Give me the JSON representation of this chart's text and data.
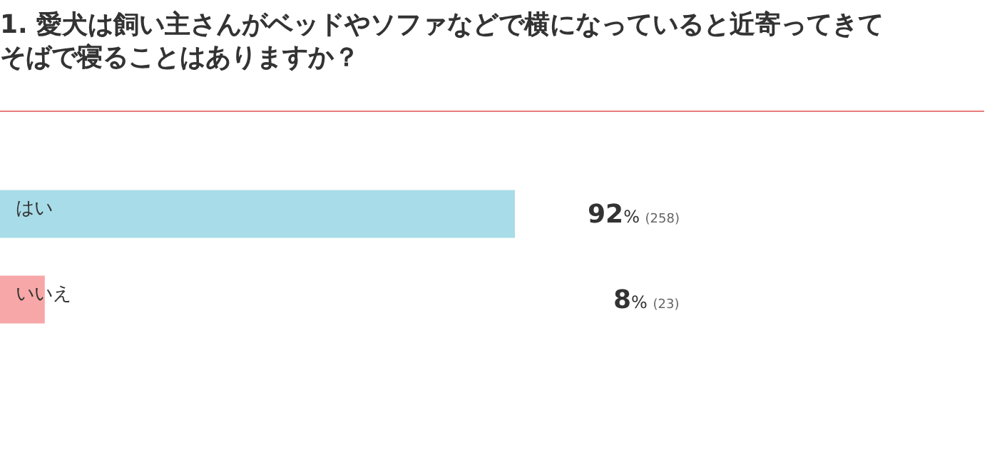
{
  "chart_data": {
    "type": "bar",
    "orientation": "horizontal",
    "title": "1. 愛犬は飼い主さんがベッドやソファなどで横になっていると近寄ってきてそばで寝ることはありますか？",
    "categories": [
      "はい",
      "いいえ"
    ],
    "values": [
      92,
      8
    ],
    "colors": [
      "#a8dce8",
      "#f7a7a7"
    ],
    "value_labels": [
      "92% (258)",
      "8% (23)"
    ],
    "legend": false
  }
}
